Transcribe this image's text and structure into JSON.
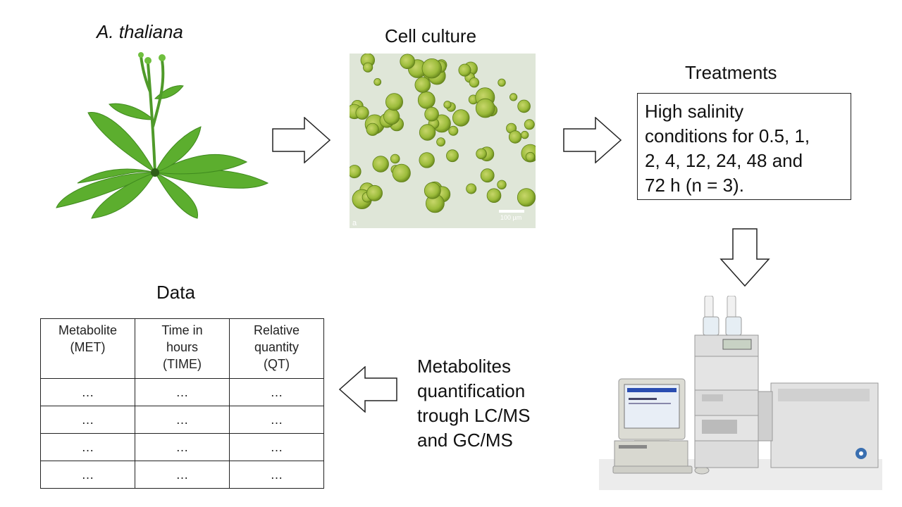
{
  "steps": {
    "plant_title": "A. thaliana",
    "culture_title": "Cell culture",
    "treatments_title": "Treatments",
    "data_title": "Data"
  },
  "treatments_text": [
    "High salinity",
    "conditions for 0.5, 1,",
    "2, 4, 12, 24, 48 and",
    "72 h (n = 3)."
  ],
  "quantification_text": [
    "Metabolites",
    "quantification",
    "trough LC/MS",
    "and GC/MS"
  ],
  "micrograph": {
    "scale_bar": "100 µm",
    "panel_letter": "a"
  },
  "table": {
    "headers": [
      [
        "Metabolite",
        "(MET)"
      ],
      [
        "Time in",
        "hours",
        "(TIME)"
      ],
      [
        "Relative",
        "quantity",
        "(QT)"
      ]
    ],
    "rows": [
      [
        "…",
        "…",
        "…"
      ],
      [
        "…",
        "…",
        "…"
      ],
      [
        "…",
        "…",
        "…"
      ],
      [
        "…",
        "…",
        "…"
      ]
    ]
  },
  "colors": {
    "leaf": "#5cae2e",
    "leaf_dark": "#3f8a1e",
    "cell": "#9bbb3a",
    "background": "#ffffff"
  }
}
